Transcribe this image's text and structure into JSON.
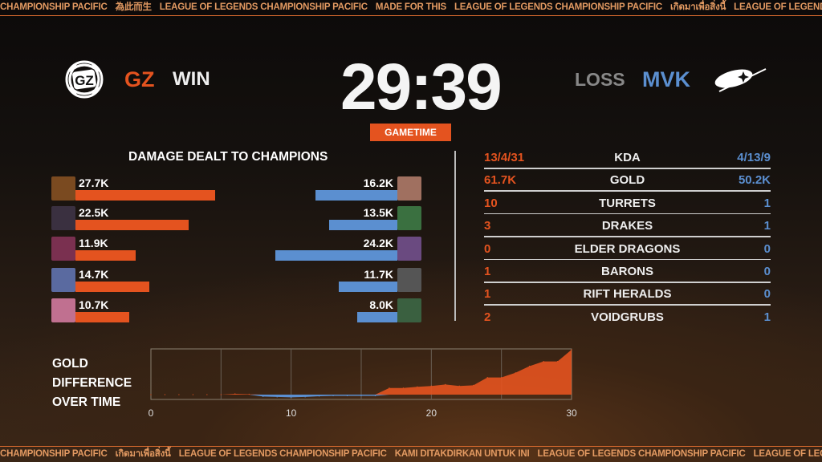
{
  "ticker_top": [
    "CHAMPIONSHIP PACIFIC",
    "為此而生",
    "LEAGUE OF LEGENDS CHAMPIONSHIP PACIFIC",
    "MADE FOR THIS",
    "LEAGUE OF LEGENDS CHAMPIONSHIP PACIFIC",
    "เกิดมาเพื่อสิ่งนี้",
    "LEAGUE OF LEGENDS CHAMPIONSHIP PACIFIC"
  ],
  "ticker_bottom": [
    "CHAMPIONSHIP PACIFIC",
    "เกิดมาเพื่อสิ่งนี้",
    "LEAGUE OF LEGENDS CHAMPIONSHIP PACIFIC",
    "KAMI DITAKDIRKAN UNTUK INI",
    "LEAGUE OF LEGENDS CHAMPIONSHIP PACIFIC",
    "LEAGUE OF LEGENDS CHAMPIONSHIP PACIFIC"
  ],
  "team_left": {
    "name": "GZ",
    "result": "WIN",
    "logo_text": "GZ",
    "color": "#e4531f"
  },
  "team_right": {
    "name": "MVK",
    "result": "LOSS",
    "color": "#5b8fd0"
  },
  "timer": "29:39",
  "timer_label": "GAMETIME",
  "damage": {
    "title": "DAMAGE DEALT TO CHAMPIONS",
    "left": [
      {
        "label": "27.7K",
        "value": 27.7
      },
      {
        "label": "22.5K",
        "value": 22.5
      },
      {
        "label": "11.9K",
        "value": 11.9
      },
      {
        "label": "14.7K",
        "value": 14.7
      },
      {
        "label": "10.7K",
        "value": 10.7
      }
    ],
    "right": [
      {
        "label": "16.2K",
        "value": 16.2
      },
      {
        "label": "13.5K",
        "value": 13.5
      },
      {
        "label": "24.2K",
        "value": 24.2
      },
      {
        "label": "11.7K",
        "value": 11.7
      },
      {
        "label": "8.0K",
        "value": 8.0
      }
    ]
  },
  "stats": [
    {
      "left": "13/4/31",
      "label": "KDA",
      "right": "4/13/9"
    },
    {
      "left": "61.7K",
      "label": "GOLD",
      "right": "50.2K"
    },
    {
      "left": "10",
      "label": "TURRETS",
      "right": "1"
    },
    {
      "left": "3",
      "label": "DRAKES",
      "right": "1"
    },
    {
      "left": "0",
      "label": "ELDER DRAGONS",
      "right": "0"
    },
    {
      "left": "1",
      "label": "BARONS",
      "right": "0"
    },
    {
      "left": "1",
      "label": "RIFT HERALDS",
      "right": "0"
    },
    {
      "left": "2",
      "label": "VOIDGRUBS",
      "right": "1"
    }
  ],
  "chart_data": {
    "type": "area",
    "title_lines": [
      "GOLD",
      "DIFFERENCE",
      "OVER TIME"
    ],
    "x": [
      0,
      1,
      2,
      3,
      4,
      5,
      6,
      7,
      8,
      9,
      10,
      11,
      12,
      13,
      14,
      15,
      16,
      17,
      18,
      19,
      20,
      21,
      22,
      23,
      24,
      25,
      26,
      27,
      28,
      29,
      30
    ],
    "y": [
      0,
      0,
      0,
      0,
      0,
      0,
      0.2,
      0.1,
      -0.5,
      -0.6,
      -0.7,
      -0.6,
      -0.4,
      -0.3,
      -0.3,
      -0.3,
      -0.3,
      1.7,
      1.7,
      2.0,
      2.2,
      2.6,
      2.2,
      2.4,
      4.4,
      4.4,
      5.6,
      7.3,
      8.5,
      8.5,
      11.5
    ],
    "xticks": [
      "0",
      "10",
      "20",
      "30"
    ],
    "xlim": [
      0,
      30
    ],
    "ylim": [
      -1.2,
      11.8
    ],
    "grid": "vertical every 5",
    "positive_color": "#e4531f",
    "negative_color": "#5b8fd0"
  }
}
